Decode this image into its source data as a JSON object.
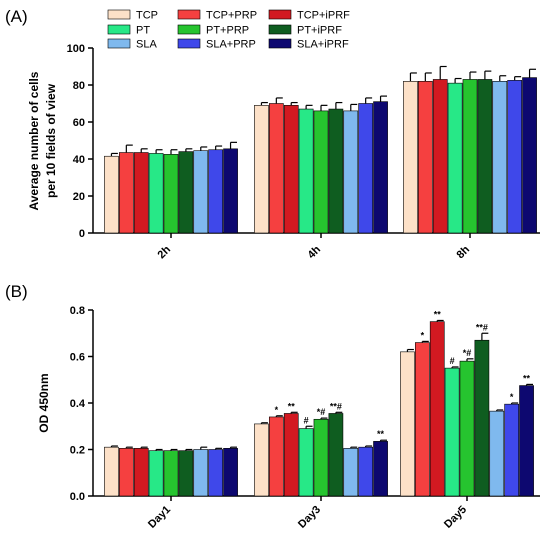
{
  "chart_data": [
    {
      "panel": "(A)",
      "type": "bar",
      "title": "",
      "xlabel": "",
      "ylabel": "Average number of cells per 10 fields of view",
      "ylabel_lines": [
        "Average number of cells",
        "per 10 fields of view"
      ],
      "ylim": [
        0,
        100
      ],
      "yticks": [
        0,
        20,
        40,
        60,
        80,
        100
      ],
      "yticks_labels": [
        "0",
        "20",
        "40",
        "60",
        "80",
        "100"
      ],
      "grid": false,
      "legend": "top-left",
      "categories": [
        "2h",
        "4h",
        "8h"
      ],
      "series": [
        {
          "name": "TCP",
          "color": "#fde1c8",
          "values": [
            41.5,
            69,
            82
          ],
          "errors": [
            1.5,
            1.5,
            4.5
          ]
        },
        {
          "name": "TCP+PRP",
          "color": "#f54040",
          "values": [
            43.5,
            70,
            82
          ],
          "errors": [
            4,
            3,
            4.5
          ]
        },
        {
          "name": "TCP+iPRF",
          "color": "#d21921",
          "values": [
            43.5,
            69,
            83
          ],
          "errors": [
            2,
            1.5,
            7
          ]
        },
        {
          "name": "PT",
          "color": "#27e887",
          "values": [
            43,
            67,
            81
          ],
          "errors": [
            2,
            2,
            2.5
          ]
        },
        {
          "name": "PT+PRP",
          "color": "#26c42f",
          "values": [
            42.5,
            66,
            83
          ],
          "errors": [
            2.5,
            3,
            4
          ]
        },
        {
          "name": "PT+iPRF",
          "color": "#0f5d20",
          "values": [
            44,
            67,
            83
          ],
          "errors": [
            1.5,
            3.5,
            4.5
          ]
        },
        {
          "name": "SLA",
          "color": "#7fb9ee",
          "values": [
            44.5,
            66,
            82
          ],
          "errors": [
            2,
            3.5,
            3
          ]
        },
        {
          "name": "SLA+PRP",
          "color": "#3f48ea",
          "values": [
            45,
            70,
            82.5
          ],
          "errors": [
            2,
            3,
            2
          ]
        },
        {
          "name": "SLA+iPRF",
          "color": "#0d0870",
          "values": [
            45.5,
            71,
            84
          ],
          "errors": [
            3.5,
            3,
            4.5
          ]
        }
      ]
    },
    {
      "panel": "(B)",
      "type": "bar",
      "title": "",
      "xlabel": "",
      "ylabel": "OD 450nm",
      "ylim": [
        0,
        0.8
      ],
      "yticks": [
        0,
        0.2,
        0.4,
        0.6,
        0.8
      ],
      "yticks_labels": [
        "0.0",
        "0.2",
        "0.4",
        "0.6",
        "0.8"
      ],
      "grid": false,
      "legend": "none",
      "categories": [
        "Day1",
        "Day3",
        "Day5"
      ],
      "series": [
        {
          "name": "TCP",
          "color": "#fde1c8",
          "values": [
            0.21,
            0.31,
            0.62
          ],
          "errors": [
            0.005,
            0.005,
            0.01
          ],
          "annotations": [
            "",
            "",
            ""
          ]
        },
        {
          "name": "TCP+PRP",
          "color": "#f54040",
          "values": [
            0.205,
            0.34,
            0.66
          ],
          "errors": [
            0.005,
            0.005,
            0.005
          ],
          "annotations": [
            "",
            "*",
            "*"
          ]
        },
        {
          "name": "TCP+iPRF",
          "color": "#d21921",
          "values": [
            0.205,
            0.355,
            0.75
          ],
          "errors": [
            0.005,
            0.005,
            0.005
          ],
          "annotations": [
            "",
            "**",
            "**"
          ]
        },
        {
          "name": "PT",
          "color": "#27e887",
          "values": [
            0.195,
            0.29,
            0.55
          ],
          "errors": [
            0.005,
            0.01,
            0.005
          ],
          "annotations": [
            "",
            "#",
            "#"
          ]
        },
        {
          "name": "PT+PRP",
          "color": "#26c42f",
          "values": [
            0.195,
            0.33,
            0.58
          ],
          "errors": [
            0.005,
            0.005,
            0.01
          ],
          "annotations": [
            "",
            "*#",
            "*#"
          ]
        },
        {
          "name": "PT+iPRF",
          "color": "#0f5d20",
          "values": [
            0.195,
            0.355,
            0.67
          ],
          "errors": [
            0.005,
            0.005,
            0.03
          ],
          "annotations": [
            "",
            "**#",
            "**#"
          ]
        },
        {
          "name": "SLA",
          "color": "#7fb9ee",
          "values": [
            0.2,
            0.205,
            0.365
          ],
          "errors": [
            0.01,
            0.005,
            0.005
          ],
          "annotations": [
            "",
            "",
            ""
          ]
        },
        {
          "name": "SLA+PRP",
          "color": "#3f48ea",
          "values": [
            0.2,
            0.21,
            0.395
          ],
          "errors": [
            0.005,
            0.005,
            0.005
          ],
          "annotations": [
            "",
            "",
            "*"
          ]
        },
        {
          "name": "SLA+iPRF",
          "color": "#0d0870",
          "values": [
            0.205,
            0.235,
            0.475
          ],
          "errors": [
            0.005,
            0.005,
            0.005
          ],
          "annotations": [
            "",
            "**",
            "**"
          ]
        }
      ]
    }
  ]
}
